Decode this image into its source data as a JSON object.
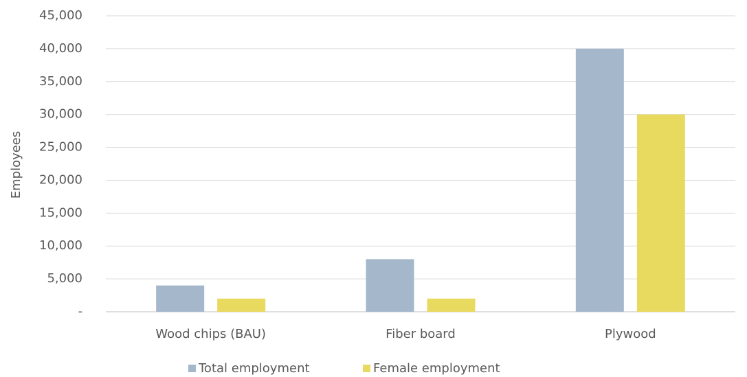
{
  "chart_data": {
    "type": "bar",
    "y_label": "Employees",
    "categories": [
      "Wood chips (BAU)",
      "Fiber board",
      "Plywood"
    ],
    "series": [
      {
        "name": "Total employment",
        "color": "#a5b8cb",
        "values": [
          4000,
          8000,
          40000
        ]
      },
      {
        "name": "Female employment",
        "color": "#e8da5f",
        "values": [
          2000,
          2000,
          30000
        ]
      }
    ],
    "ylim": [
      0,
      45000
    ],
    "yticks": [
      {
        "value": 0,
        "label": "-"
      },
      {
        "value": 5000,
        "label": "5,000"
      },
      {
        "value": 10000,
        "label": "10,000"
      },
      {
        "value": 15000,
        "label": "15,000"
      },
      {
        "value": 20000,
        "label": "20,000"
      },
      {
        "value": 25000,
        "label": "25,000"
      },
      {
        "value": 30000,
        "label": "30,000"
      },
      {
        "value": 35000,
        "label": "35,000"
      },
      {
        "value": 40000,
        "label": "40,000"
      },
      {
        "value": 45000,
        "label": "45,000"
      }
    ],
    "grid": true,
    "legend": "bottom"
  }
}
